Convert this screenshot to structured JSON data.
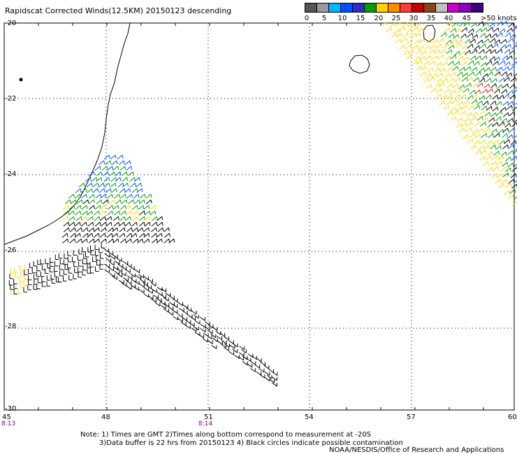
{
  "title": "Rapidscat Corrected Winds(12.5KM) 20150123 descending",
  "legend": {
    "colors": [
      "#555555",
      "#9a9a9a",
      "#00b4ff",
      "#0050ff",
      "#2d2dc8",
      "#00a000",
      "#ffd200",
      "#ff8c00",
      "#ff3c3c",
      "#c80000",
      "#8b4513",
      "#c0c0c0",
      "#c800c8",
      "#8c00c8",
      "#3c0078"
    ],
    "labels": [
      "0",
      "5",
      "10",
      "15",
      "20",
      "25",
      "30",
      "35",
      "40",
      "45",
      ">50 knots"
    ]
  },
  "map": {
    "lat_ticks": [
      "-20",
      "-22",
      "-24",
      "-26",
      "-28",
      "-30"
    ],
    "lon_ticks": [
      "45",
      "48",
      "51",
      "54",
      "57",
      "60"
    ],
    "time_labels": [
      "8:13",
      "8:14"
    ],
    "wind_colors": {
      "black": "#000000",
      "green": "#00a000",
      "blue": "#0050ff",
      "yellow": "#ffd700",
      "red": "#dd2020"
    }
  },
  "notes": {
    "line1": "Note: 1) Times are GMT 2)Times along bottom correspond to measurement at -20S",
    "line2": "3)Data buffer is 22 hrs from 20150123 4) Black circles indicate possible contamination",
    "credit": "NOAA/NESDIS/Office of Research and Applications"
  }
}
